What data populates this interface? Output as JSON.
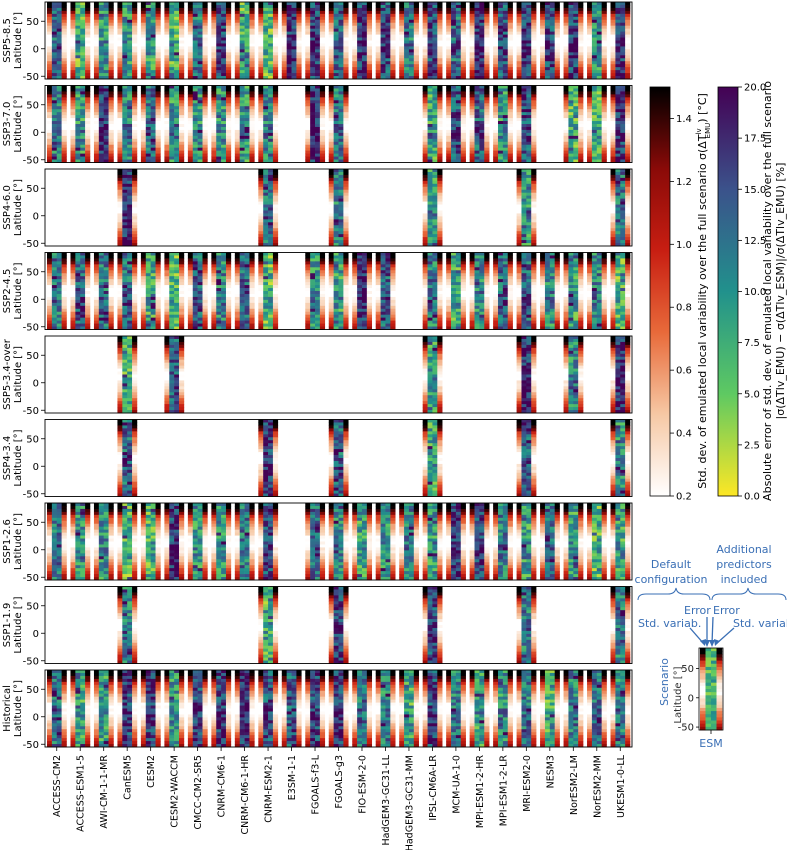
{
  "chart_data": {
    "type": "heatmap",
    "y_axis_label": "Latitude [°]",
    "y_ticks": [
      -50,
      0,
      50
    ],
    "ylim": [
      -55,
      85
    ],
    "models": [
      "ACCESS-CM2",
      "ACCESS-ESM1-5",
      "AWI-CM-1-1-MR",
      "CanESM5",
      "CESM2",
      "CESM2-WACCM",
      "CMCC-CM2-SR5",
      "CNRM-CM6-1",
      "CNRM-CM6-1-HR",
      "CNRM-ESM2-1",
      "E3SM-1-1",
      "FGOALS-f3-L",
      "FGOALS-g3",
      "FIO-ESM-2-0",
      "HadGEM3-GC31-LL",
      "HadGEM3-GC31-MM",
      "IPSL-CM6A-LR",
      "MCM-UA-1-0",
      "MPI-ESM1-2-HR",
      "MPI-ESM1-2-LR",
      "MRI-ESM2-0",
      "NESM3",
      "NorESM2-LM",
      "NorESM2-MM",
      "UKESM1-0-LL"
    ],
    "scenarios": [
      {
        "name": "SSP5-8.5",
        "available": [
          0,
          1,
          2,
          3,
          4,
          5,
          6,
          7,
          8,
          9,
          10,
          11,
          12,
          13,
          14,
          15,
          16,
          17,
          18,
          19,
          20,
          21,
          22,
          23,
          24
        ]
      },
      {
        "name": "SSP3-7.0",
        "available": [
          0,
          1,
          2,
          3,
          4,
          5,
          6,
          7,
          8,
          9,
          11,
          12,
          16,
          17,
          18,
          19,
          20,
          22,
          23,
          24
        ]
      },
      {
        "name": "SSP4-6.0",
        "available": [
          3,
          9,
          12,
          16,
          20,
          24
        ]
      },
      {
        "name": "SSP2-4.5",
        "available": [
          0,
          1,
          2,
          3,
          4,
          5,
          6,
          7,
          8,
          9,
          11,
          12,
          13,
          14,
          16,
          17,
          18,
          19,
          20,
          21,
          22,
          23,
          24
        ]
      },
      {
        "name": "SSP5-3.4-over",
        "available": [
          3,
          5,
          16,
          20,
          22,
          24
        ]
      },
      {
        "name": "SSP4-3.4",
        "available": [
          3,
          9,
          12,
          16,
          20,
          24
        ]
      },
      {
        "name": "SSP1-2.6",
        "available": [
          0,
          1,
          2,
          3,
          4,
          5,
          6,
          7,
          8,
          9,
          11,
          12,
          13,
          14,
          15,
          16,
          17,
          18,
          19,
          20,
          21,
          22,
          23,
          24
        ]
      },
      {
        "name": "SSP1-1.9",
        "available": [
          3,
          9,
          12,
          16,
          20,
          24
        ]
      },
      {
        "name": "Historical",
        "available": [
          0,
          1,
          2,
          3,
          4,
          5,
          6,
          7,
          8,
          9,
          10,
          11,
          12,
          13,
          14,
          15,
          16,
          17,
          18,
          19,
          20,
          21,
          22,
          23,
          24
        ]
      }
    ],
    "colorbar_std": {
      "label": "Std. dev. of emulated local variability over the full scenario σ(ΔT",
      "label_sup": "lv",
      "label_sub": "EMU",
      "label_tail": ") [°C]",
      "ticks": [
        0.2,
        0.4,
        0.6,
        0.8,
        1.0,
        1.2,
        1.4
      ],
      "range": [
        0.2,
        1.5
      ],
      "colors": [
        "#ffffff",
        "#f6c8a4",
        "#e86a3a",
        "#c81e12",
        "#8a0a08",
        "#000000"
      ]
    },
    "colorbar_err": {
      "label_line1": "Absolute error of std. dev. of emulated local variability over the full scenario",
      "label_line2": "|σ(ΔTlv_EMU) − σ(ΔTlv_ESM)|/σ(ΔTlv_EMU) [%]",
      "ticks": [
        0.0,
        2.5,
        5.0,
        7.5,
        10.0,
        12.5,
        15.0,
        17.5,
        20.0
      ],
      "range": [
        0,
        20
      ],
      "colors": [
        "#fde725",
        "#5ec962",
        "#21918c",
        "#3b528b",
        "#440154"
      ]
    },
    "legend": {
      "default_config": "Default configuration",
      "additional": "Additional predictors included",
      "error_left": "Error",
      "error_right": "Error",
      "std_left": "Std. variab.",
      "std_right": "Std. variab.",
      "scenario": "Scenario",
      "y_axis_label": "Latitude [°]",
      "y_ticks": [
        50,
        0,
        -50
      ],
      "esm": "ESM"
    }
  }
}
